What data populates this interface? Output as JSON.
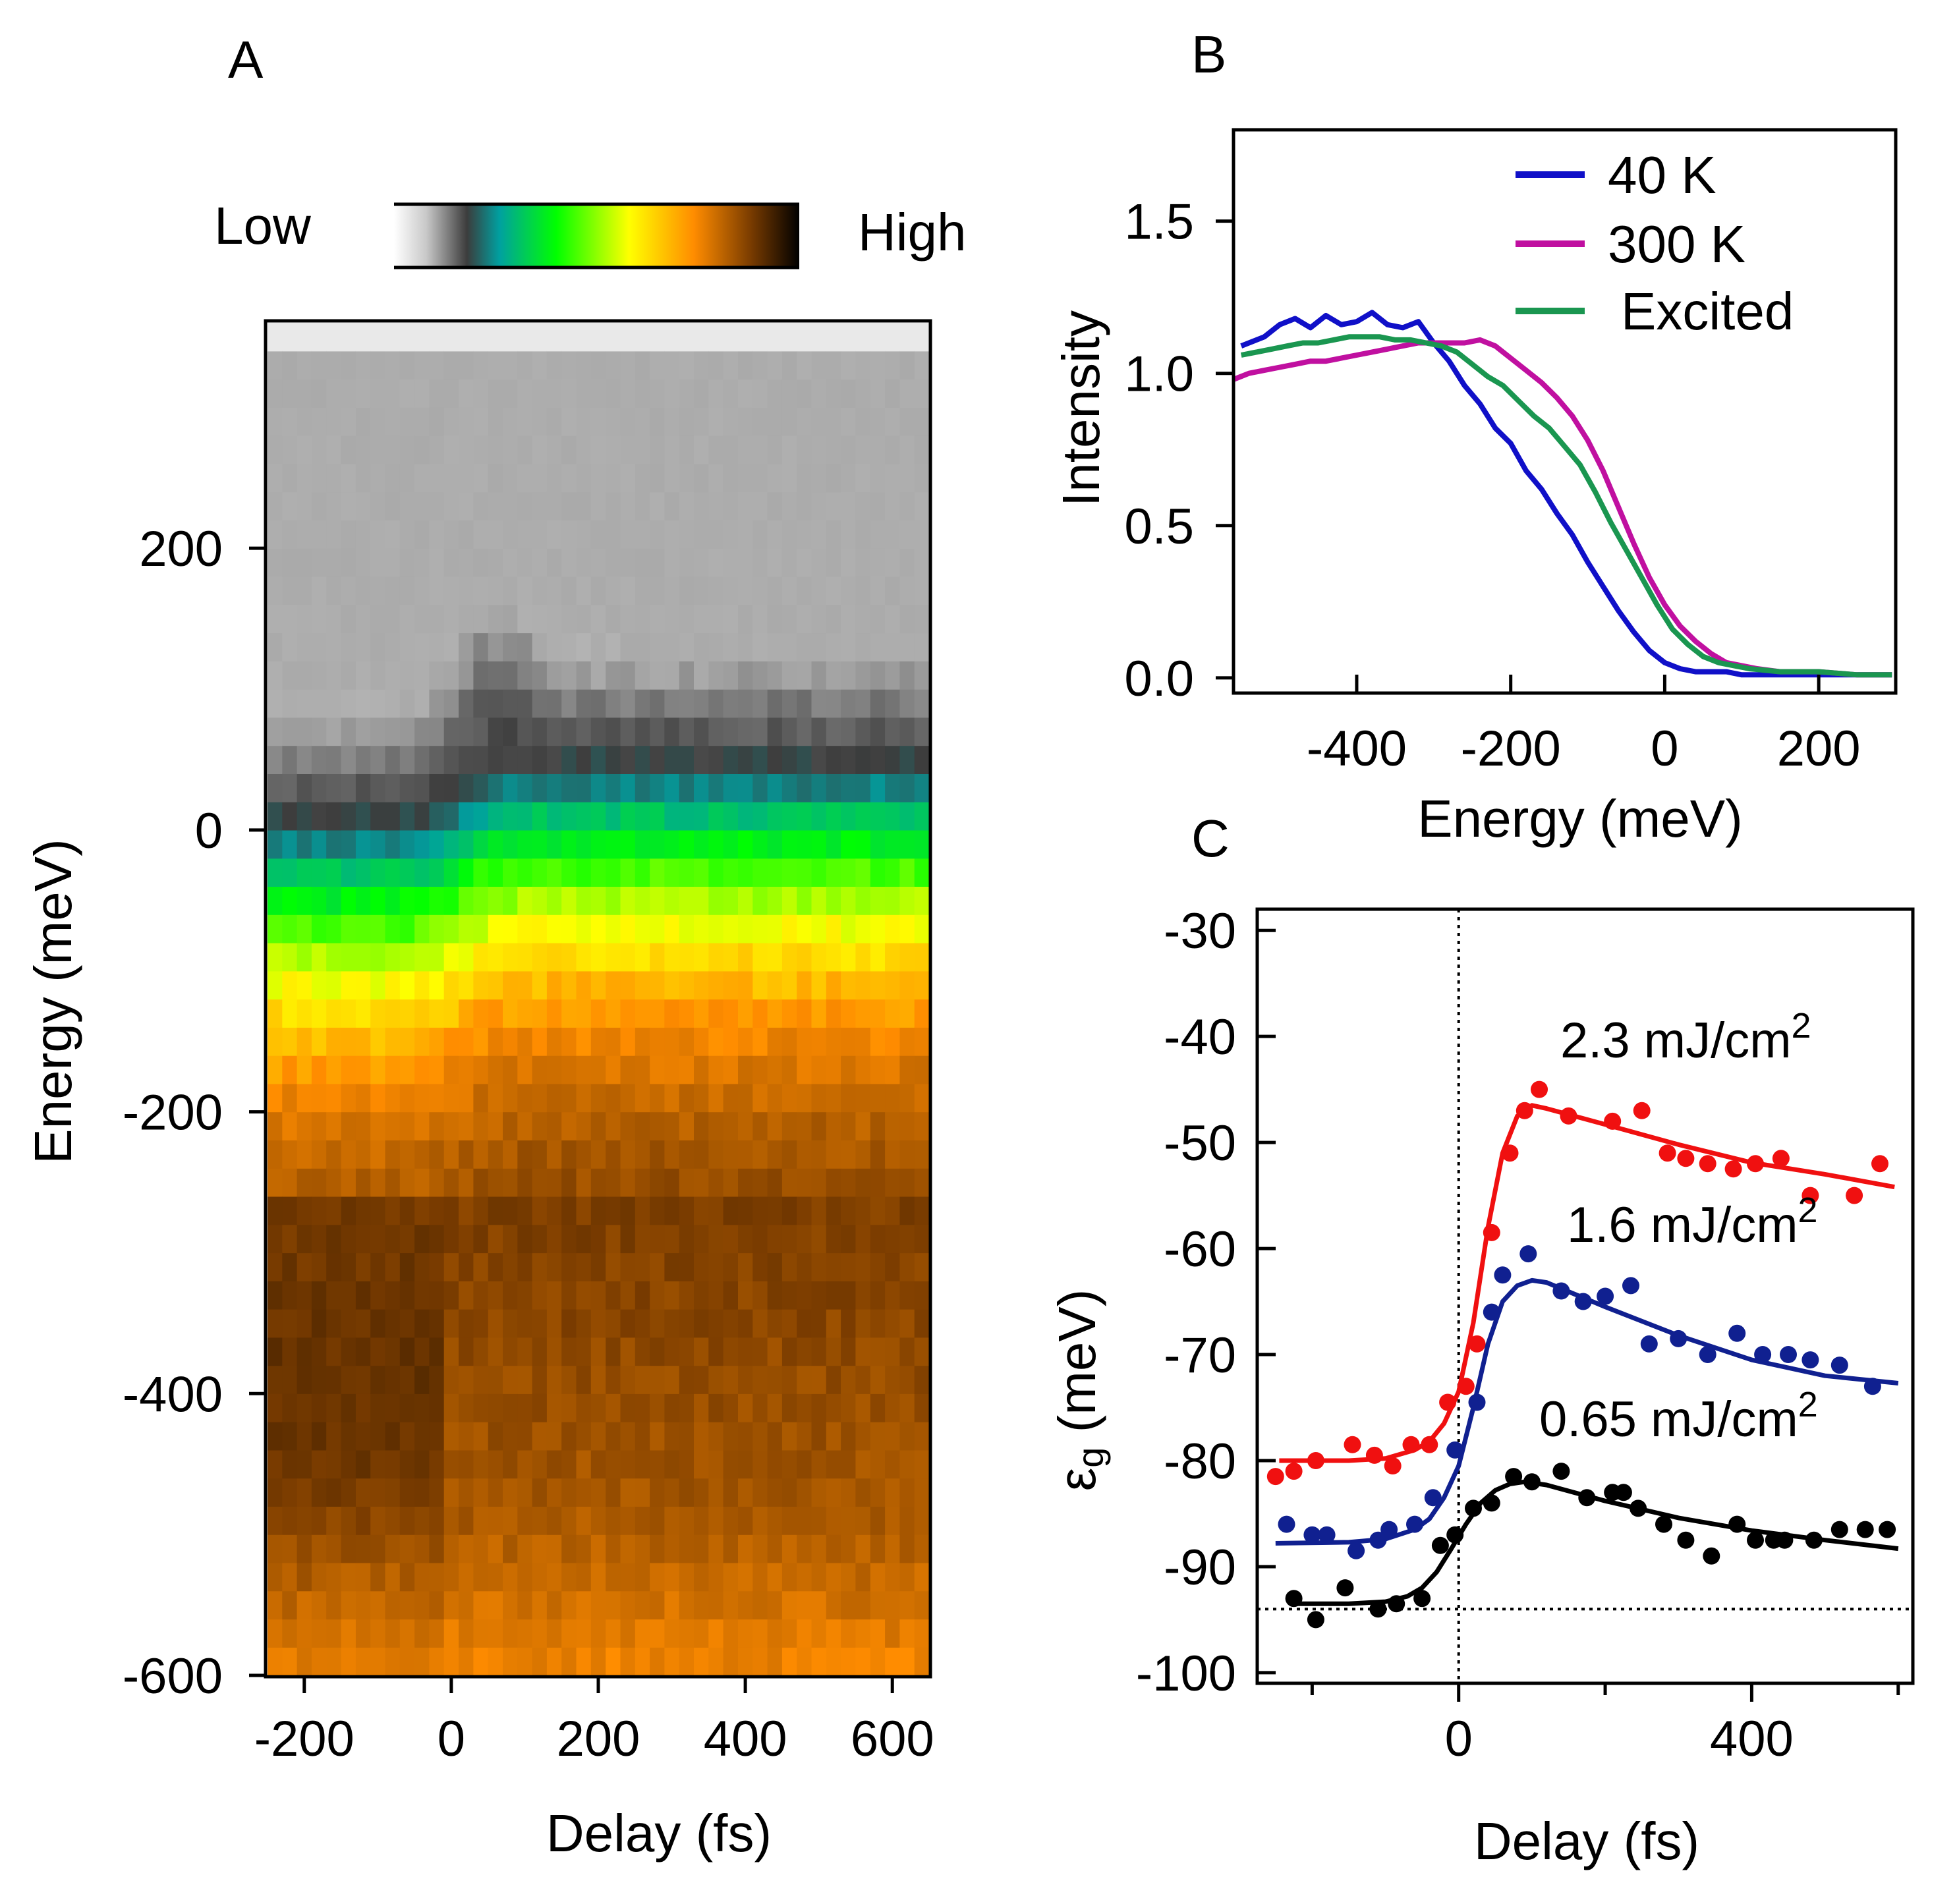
{
  "chart_data": [
    {
      "panel": "A",
      "type": "heatmap",
      "xlabel": "Delay (fs)",
      "ylabel": "Energy (meV)",
      "xlim": [
        -250,
        650
      ],
      "ylim": [
        -600,
        360
      ],
      "xticks": [
        -200,
        0,
        200,
        400,
        600
      ],
      "yticks": [
        -600,
        -400,
        -200,
        0,
        200
      ],
      "colorbar": {
        "low_label": "Low",
        "high_label": "High",
        "colors": [
          "#ffffff",
          "#3c3c3c",
          "#00a0a0",
          "#00ff00",
          "#ffff00",
          "#ff8c00",
          "#7a3c00",
          "#000000"
        ]
      },
      "features": {
        "edge_before_zero_meV": 0,
        "edge_after_zero_meV": 40,
        "transient_peak_delay_fs": 50,
        "transient_peak_energy_meV": 90
      }
    },
    {
      "panel": "B",
      "type": "line",
      "xlabel": "Energy (meV)",
      "ylabel": "Intensity",
      "xlim": [
        -560,
        300
      ],
      "ylim": [
        -0.05,
        1.8
      ],
      "xticks": [
        -400,
        -200,
        0,
        200
      ],
      "yticks": [
        0.0,
        0.5,
        1.0,
        1.5
      ],
      "yticklabels": [
        "0.0",
        "0.5",
        "1.0",
        "1.5"
      ],
      "legend": "top-right",
      "series": [
        {
          "name": "40 K",
          "color": "#1010c8",
          "x": [
            -550,
            -520,
            -500,
            -480,
            -460,
            -440,
            -420,
            -400,
            -380,
            -360,
            -340,
            -320,
            -300,
            -280,
            -260,
            -240,
            -220,
            -200,
            -180,
            -160,
            -140,
            -120,
            -100,
            -80,
            -60,
            -40,
            -20,
            0,
            20,
            40,
            60,
            80,
            100,
            150,
            200,
            250,
            295
          ],
          "y": [
            1.09,
            1.12,
            1.16,
            1.18,
            1.15,
            1.19,
            1.16,
            1.17,
            1.2,
            1.16,
            1.15,
            1.17,
            1.1,
            1.04,
            0.96,
            0.9,
            0.82,
            0.77,
            0.68,
            0.62,
            0.54,
            0.47,
            0.38,
            0.3,
            0.22,
            0.15,
            0.09,
            0.05,
            0.03,
            0.02,
            0.02,
            0.02,
            0.01,
            0.01,
            0.01,
            0.01,
            0.01
          ]
        },
        {
          "name": "300 K",
          "color": "#c010a0",
          "x": [
            -560,
            -540,
            -520,
            -500,
            -480,
            -460,
            -440,
            -420,
            -400,
            -380,
            -360,
            -340,
            -320,
            -300,
            -280,
            -260,
            -240,
            -220,
            -200,
            -180,
            -160,
            -140,
            -120,
            -100,
            -80,
            -60,
            -40,
            -20,
            0,
            20,
            40,
            60,
            80,
            100,
            120,
            150,
            200,
            250,
            295
          ],
          "y": [
            0.98,
            1.0,
            1.01,
            1.02,
            1.03,
            1.04,
            1.04,
            1.05,
            1.06,
            1.07,
            1.08,
            1.09,
            1.1,
            1.1,
            1.1,
            1.1,
            1.11,
            1.09,
            1.05,
            1.01,
            0.97,
            0.92,
            0.86,
            0.78,
            0.68,
            0.56,
            0.44,
            0.33,
            0.24,
            0.17,
            0.12,
            0.08,
            0.05,
            0.04,
            0.03,
            0.02,
            0.02,
            0.01,
            0.01
          ]
        },
        {
          "name": "Excited",
          "color": "#1a9650",
          "x": [
            -550,
            -530,
            -510,
            -490,
            -470,
            -450,
            -430,
            -410,
            -390,
            -370,
            -350,
            -330,
            -310,
            -290,
            -270,
            -250,
            -230,
            -210,
            -190,
            -170,
            -150,
            -130,
            -110,
            -90,
            -70,
            -50,
            -30,
            -10,
            10,
            30,
            50,
            70,
            90,
            110,
            150,
            200,
            250,
            295
          ],
          "y": [
            1.06,
            1.07,
            1.08,
            1.09,
            1.1,
            1.1,
            1.11,
            1.12,
            1.12,
            1.12,
            1.11,
            1.11,
            1.1,
            1.09,
            1.07,
            1.03,
            0.99,
            0.96,
            0.91,
            0.86,
            0.82,
            0.76,
            0.7,
            0.61,
            0.51,
            0.42,
            0.33,
            0.24,
            0.16,
            0.11,
            0.07,
            0.05,
            0.04,
            0.03,
            0.02,
            0.02,
            0.01,
            0.01
          ]
        }
      ]
    },
    {
      "panel": "C",
      "type": "scatter",
      "xlabel": "Delay (fs)",
      "ylabel": "ε",
      "ylabel_sub": "g",
      "ylabel_unit": " (meV)",
      "xlim": [
        -275,
        620
      ],
      "ylim": [
        -101,
        -28
      ],
      "xticks": [
        0,
        400
      ],
      "minor_xticks": [
        -200,
        200,
        600
      ],
      "yticks": [
        -100,
        -90,
        -80,
        -70,
        -60,
        -50,
        -40,
        -30
      ],
      "reference_lines": {
        "vertical_x": 0,
        "horizontal_y": -94
      },
      "series": [
        {
          "name": "2.3 mJ/cm",
          "name_sup": "2",
          "color": "#f01010",
          "points_x": [
            -250,
            -225,
            -195,
            -145,
            -115,
            -90,
            -65,
            -40,
            -15,
            10,
            25,
            45,
            70,
            90,
            110,
            150,
            210,
            250,
            285,
            310,
            340,
            375,
            405,
            440,
            480,
            540,
            575
          ],
          "points_y": [
            -81.5,
            -81.0,
            -80.0,
            -78.5,
            -79.5,
            -80.5,
            -78.5,
            -78.5,
            -74.5,
            -73.0,
            -69.0,
            -58.5,
            -51.0,
            -47.0,
            -45.0,
            -47.5,
            -48.0,
            -47.0,
            -51.0,
            -51.5,
            -52.0,
            -52.5,
            -52.0,
            -51.5,
            -55.0,
            -55.0,
            -52.0
          ],
          "fit_x": [
            -245,
            -150,
            -100,
            -60,
            -40,
            -20,
            0,
            20,
            40,
            60,
            80,
            100,
            120,
            200,
            300,
            400,
            500,
            595
          ],
          "fit_y": [
            -80.0,
            -80.0,
            -79.8,
            -79.0,
            -78.2,
            -76.5,
            -73.5,
            -67.0,
            -58.0,
            -51.0,
            -47.5,
            -46.5,
            -46.8,
            -48.3,
            -50.2,
            -51.9,
            -53.0,
            -54.2
          ]
        },
        {
          "name": "1.6 mJ/cm",
          "name_sup": "2",
          "color": "#102090",
          "points_x": [
            -235,
            -200,
            -180,
            -140,
            -110,
            -95,
            -60,
            -35,
            -5,
            25,
            45,
            60,
            95,
            140,
            170,
            200,
            235,
            260,
            300,
            340,
            380,
            415,
            450,
            480,
            520,
            565
          ],
          "points_y": [
            -86.0,
            -87.0,
            -87.0,
            -88.5,
            -87.5,
            -86.5,
            -86.0,
            -83.5,
            -79.0,
            -74.5,
            -66.0,
            -62.5,
            -60.5,
            -64.0,
            -65.0,
            -64.5,
            -63.5,
            -69.0,
            -68.5,
            -70.0,
            -68.0,
            -70.0,
            -70.0,
            -70.5,
            -71.0,
            -73.0
          ],
          "fit_x": [
            -250,
            -150,
            -100,
            -60,
            -40,
            -20,
            0,
            20,
            40,
            60,
            80,
            100,
            120,
            200,
            300,
            400,
            500,
            600
          ],
          "fit_y": [
            -87.8,
            -87.7,
            -87.4,
            -86.5,
            -85.5,
            -83.5,
            -80.5,
            -75.0,
            -69.0,
            -65.0,
            -63.5,
            -63.0,
            -63.2,
            -65.5,
            -68.2,
            -70.5,
            -72.0,
            -72.7
          ]
        },
        {
          "name": "0.65 mJ/cm",
          "name_sup": "2",
          "color": "#000000",
          "points_x": [
            -225,
            -195,
            -155,
            -110,
            -85,
            -50,
            -25,
            -5,
            20,
            45,
            75,
            100,
            140,
            175,
            210,
            225,
            245,
            280,
            310,
            345,
            380,
            405,
            430,
            445,
            485,
            520,
            555,
            585
          ],
          "points_y": [
            -93.0,
            -95.0,
            -92.0,
            -94.0,
            -93.5,
            -93.0,
            -88.0,
            -87.0,
            -84.5,
            -84.0,
            -81.5,
            -82.0,
            -81.0,
            -83.5,
            -83.0,
            -83.0,
            -84.5,
            -86.0,
            -87.5,
            -89.0,
            -86.0,
            -87.5,
            -87.5,
            -87.5,
            -87.5,
            -86.5,
            -86.5,
            -86.5
          ],
          "fit_x": [
            -230,
            -150,
            -100,
            -70,
            -50,
            -30,
            -10,
            10,
            30,
            50,
            70,
            90,
            120,
            200,
            300,
            400,
            500,
            600
          ],
          "fit_y": [
            -93.5,
            -93.5,
            -93.3,
            -92.8,
            -92.0,
            -90.5,
            -88.3,
            -86.0,
            -84.0,
            -82.8,
            -82.2,
            -82.0,
            -82.3,
            -83.8,
            -85.4,
            -86.6,
            -87.5,
            -88.3
          ]
        }
      ]
    }
  ],
  "panel_labels": {
    "a": "A",
    "b": "B",
    "c": "C"
  }
}
